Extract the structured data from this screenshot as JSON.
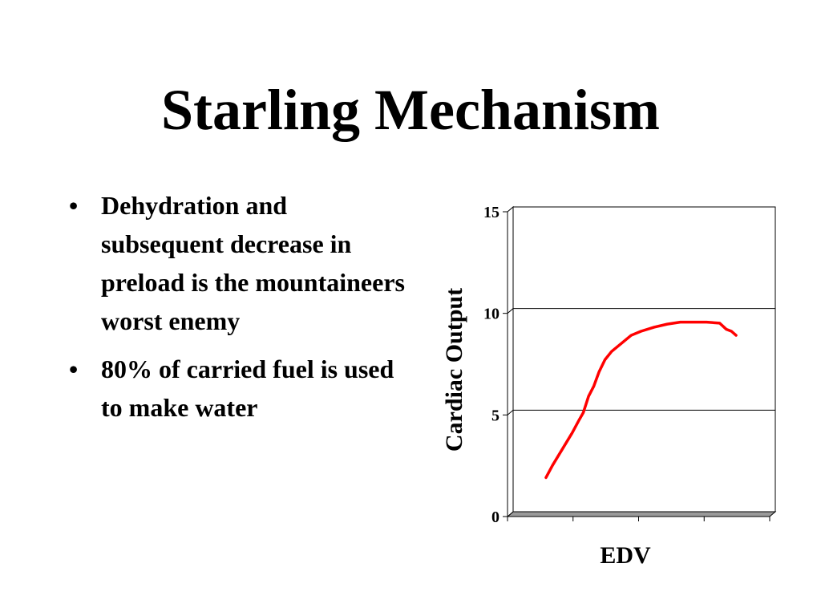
{
  "slide": {
    "title": "Starling Mechanism",
    "bullets": [
      "Dehydration and subsequent decrease in preload is the mountaineers worst enemy",
      "80% of carried fuel is used to make water"
    ],
    "bullet_symbol": "•"
  },
  "chart_data": {
    "type": "line",
    "ylabel": "Cardiac Output",
    "xlabel": "EDV",
    "ylim": [
      0,
      15
    ],
    "yticks": [
      0,
      5,
      10,
      15
    ],
    "grid": true,
    "series_color": "#ff0000",
    "x_categories": 4,
    "series": [
      {
        "x": [
          0.55,
          0.65,
          0.8,
          0.95,
          1.05,
          1.12,
          1.2,
          1.28,
          1.36,
          1.45,
          1.55,
          1.7,
          1.85,
          2.0,
          2.2,
          2.4,
          2.6,
          2.8,
          3.0,
          3.2,
          3.3,
          3.38,
          3.45
        ],
        "y": [
          1.8,
          2.4,
          3.2,
          4.0,
          4.6,
          5.0,
          5.8,
          6.3,
          7.0,
          7.6,
          8.0,
          8.4,
          8.8,
          9.0,
          9.2,
          9.35,
          9.45,
          9.45,
          9.45,
          9.4,
          9.1,
          9.0,
          8.8
        ]
      }
    ]
  }
}
